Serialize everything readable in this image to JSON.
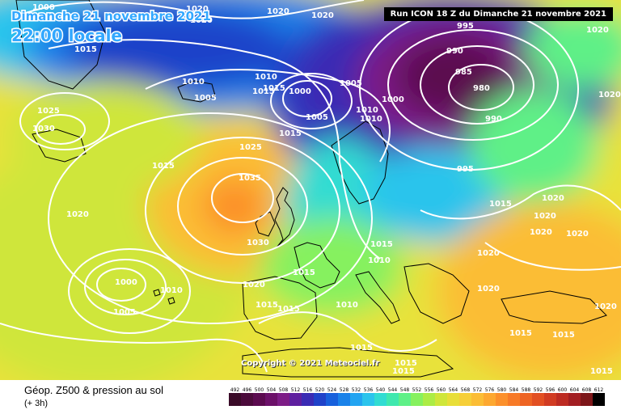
{
  "header": {
    "date_title": "Dimanche 21 novembre 2021",
    "time_title": "22:00 locale",
    "run_info": "Run ICON 18 Z du Dimanche 21 novembre 2021"
  },
  "copyright": "Copyright © 2021 Meteociel.fr",
  "footer": {
    "product": "Géop. Z500 & pression au sol",
    "step": "(+ 3h)"
  },
  "legend": {
    "values": [
      "492",
      "496",
      "500",
      "504",
      "508",
      "512",
      "516",
      "520",
      "524",
      "528",
      "532",
      "536",
      "540",
      "544",
      "548",
      "552",
      "556",
      "560",
      "564",
      "568",
      "572",
      "576",
      "580",
      "584",
      "588",
      "592",
      "596",
      "600",
      "604",
      "608",
      "612"
    ],
    "colors": [
      "#3a0b28",
      "#4b0a3b",
      "#5b0a4f",
      "#6c1069",
      "#7d1c86",
      "#5e1f9f",
      "#3a2bb4",
      "#1f42c9",
      "#1760dc",
      "#1a82e9",
      "#22a4f1",
      "#2bc4ec",
      "#31dcd2",
      "#3fe8ae",
      "#5ef087",
      "#86f15e",
      "#acec45",
      "#cfe63a",
      "#e8de38",
      "#f6cf38",
      "#fbbd35",
      "#fda830",
      "#fc902b",
      "#f77a27",
      "#ee6423",
      "#e24f22",
      "#d13b22",
      "#bd2b22",
      "#a21e22",
      "#7d1619",
      "#000000"
    ]
  },
  "isobars": [
    {
      "text": "1000"
    },
    {
      "text": "1020"
    },
    {
      "text": "1020"
    },
    {
      "text": "1020"
    },
    {
      "text": "1020"
    },
    {
      "text": "1020"
    },
    {
      "text": "995"
    },
    {
      "text": "990"
    },
    {
      "text": "985"
    },
    {
      "text": "980"
    },
    {
      "text": "990"
    },
    {
      "text": "995"
    },
    {
      "text": "1015"
    },
    {
      "text": "1010"
    },
    {
      "text": "1005"
    },
    {
      "text": "1015"
    },
    {
      "text": "1010"
    },
    {
      "text": "1015"
    },
    {
      "text": "1000"
    },
    {
      "text": "1005"
    },
    {
      "text": "1005"
    },
    {
      "text": "1000"
    },
    {
      "text": "1010"
    },
    {
      "text": "1010"
    },
    {
      "text": "1025"
    },
    {
      "text": "1030"
    },
    {
      "text": "1015"
    },
    {
      "text": "1025"
    },
    {
      "text": "1035"
    },
    {
      "text": "1020"
    },
    {
      "text": "1030"
    },
    {
      "text": "1000"
    },
    {
      "text": "1005"
    },
    {
      "text": "1010"
    },
    {
      "text": "1015"
    },
    {
      "text": "1015"
    },
    {
      "text": "1010"
    },
    {
      "text": "1015"
    },
    {
      "text": "1020"
    },
    {
      "text": "1015"
    },
    {
      "text": "1015"
    },
    {
      "text": "1010"
    },
    {
      "text": "1015"
    },
    {
      "text": "1015"
    },
    {
      "text": "1015"
    },
    {
      "text": "1020"
    },
    {
      "text": "1020"
    },
    {
      "text": "1020"
    },
    {
      "text": "1020"
    },
    {
      "text": "1020"
    },
    {
      "text": "1020"
    },
    {
      "text": "1015"
    },
    {
      "text": "1015"
    },
    {
      "text": "1015"
    },
    {
      "text": "1020"
    },
    {
      "text": "1020"
    },
    {
      "text": "1015"
    },
    {
      "text": "1020"
    }
  ]
}
